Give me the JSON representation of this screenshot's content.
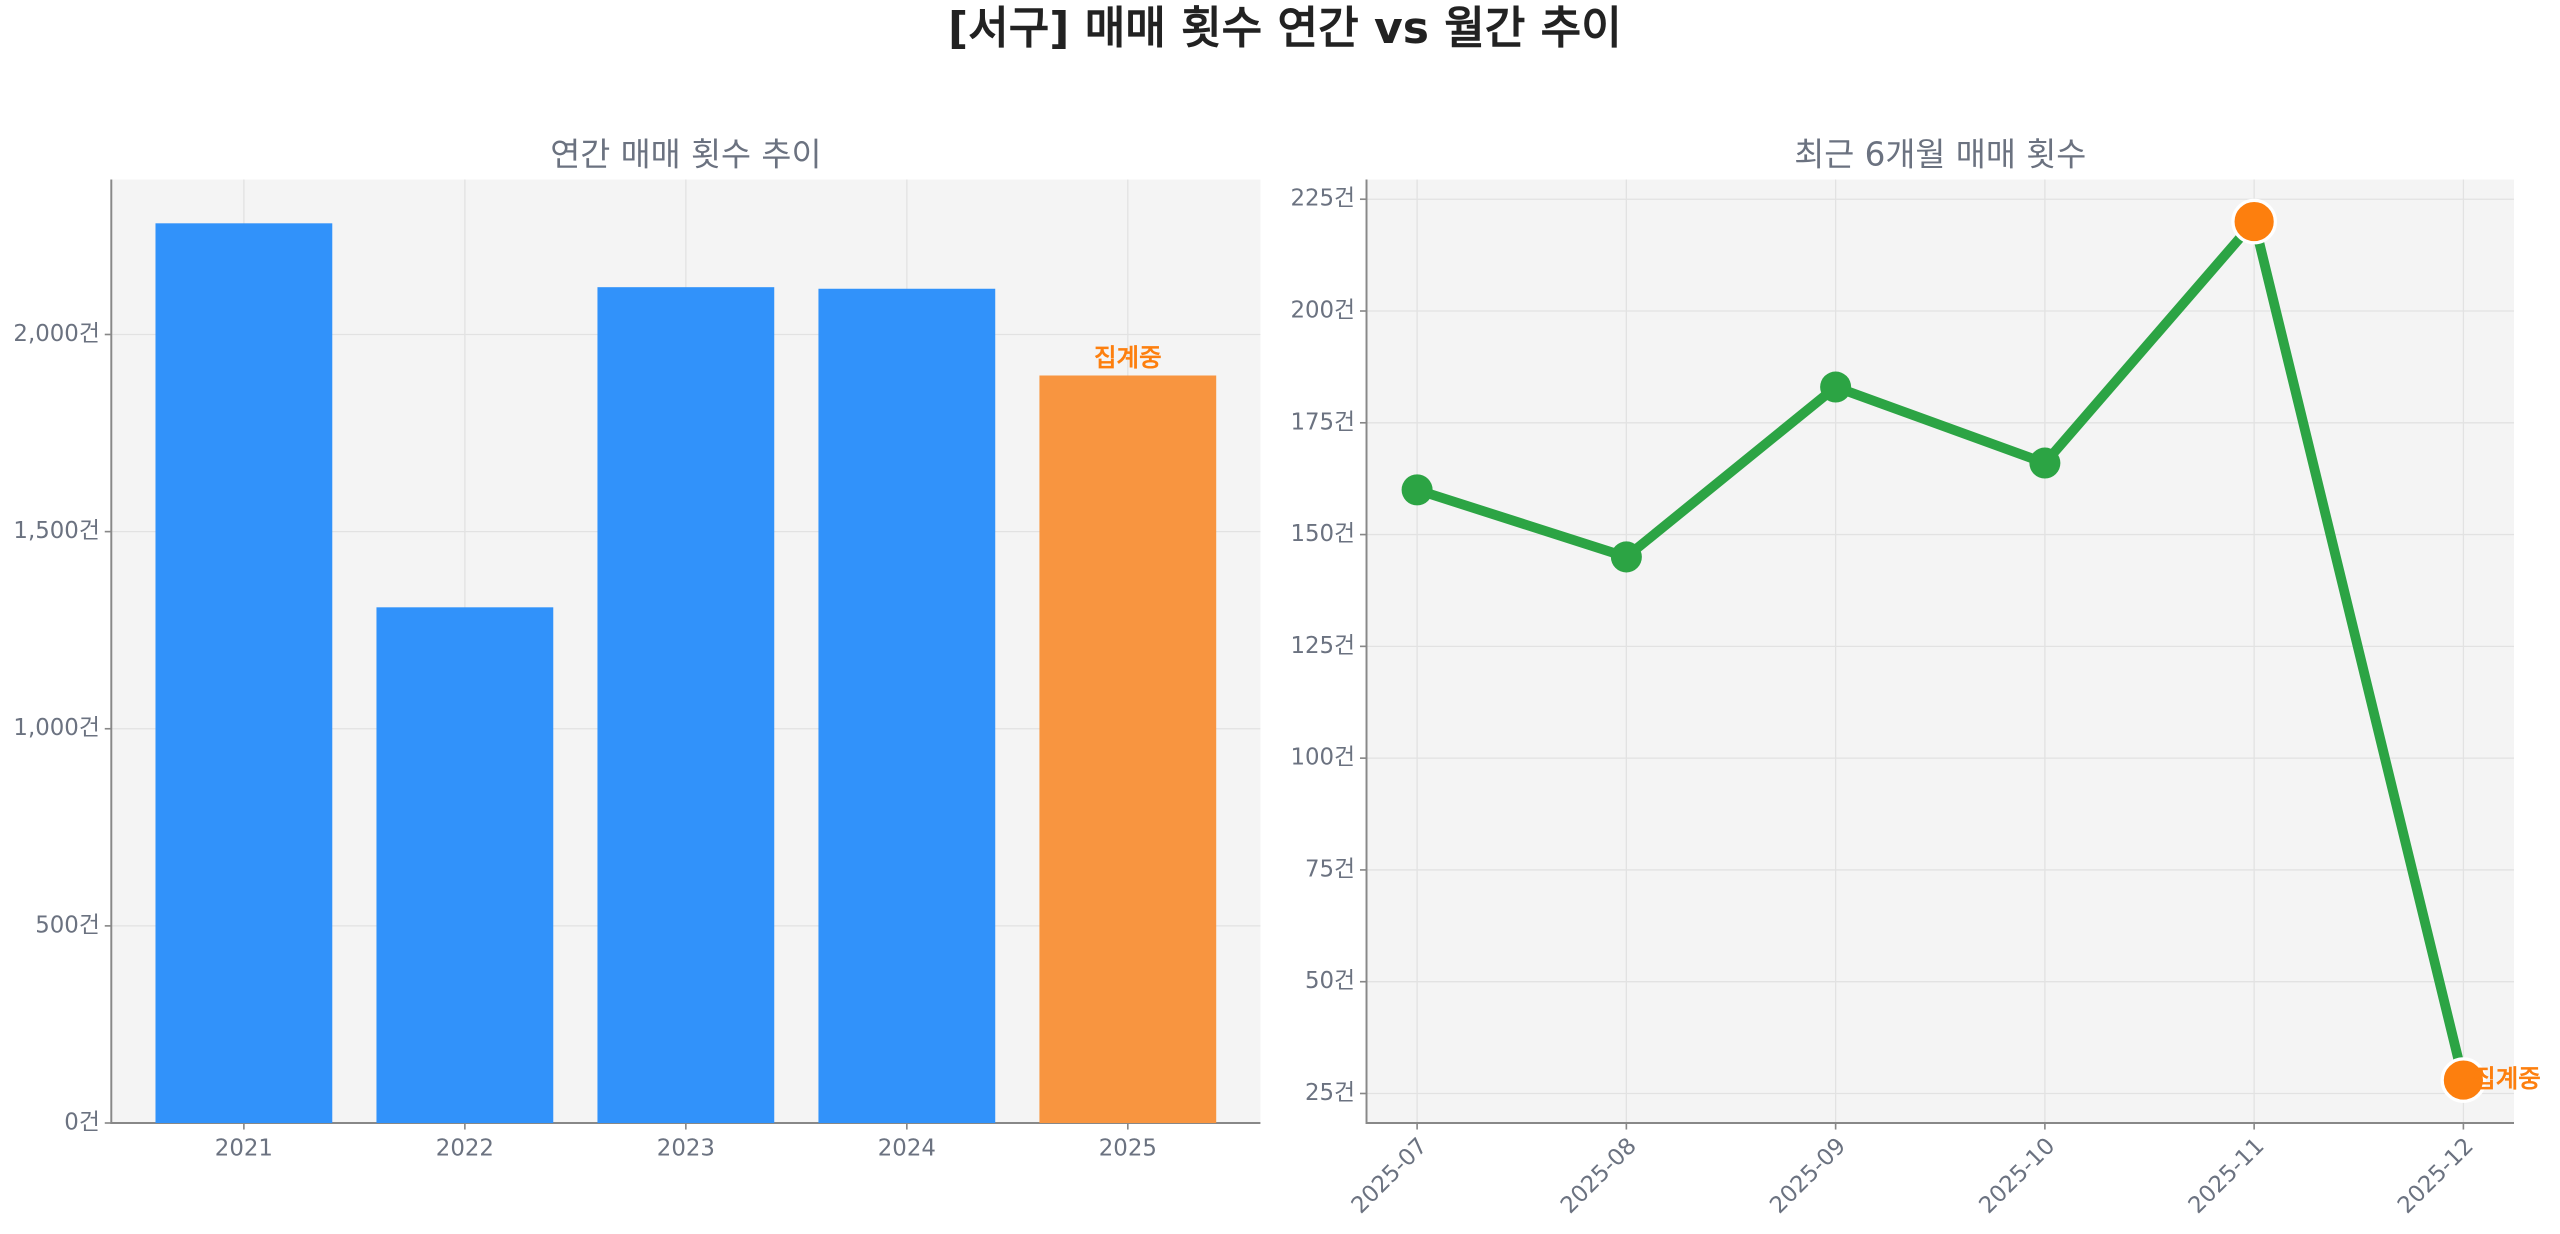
{
  "title": "[서구] 매매 횟수 연간 vs 월간 추이",
  "chart_data": [
    {
      "type": "bar",
      "title": "연간 매매 횟수 추이",
      "categories": [
        "2021",
        "2022",
        "2023",
        "2024",
        "2025"
      ],
      "values": [
        2282,
        1308,
        2120,
        2116,
        1896
      ],
      "colors": [
        "#3192fa",
        "#3192fa",
        "#3192fa",
        "#3192fa",
        "#f89540"
      ],
      "annotations": [
        {
          "x": "2025",
          "text": "집계중",
          "color": "#fd7f0e"
        }
      ],
      "ylim": [
        0,
        2393
      ],
      "yticks": [
        {
          "value": 0,
          "label": "0건"
        },
        {
          "value": 500,
          "label": "500건"
        },
        {
          "value": 1000,
          "label": "1,000건"
        },
        {
          "value": 1500,
          "label": "1,500건"
        },
        {
          "value": 2000,
          "label": "2,000건"
        }
      ],
      "grid": true
    },
    {
      "type": "line",
      "title": "최근 6개월 매매 횟수",
      "categories": [
        "2025-07",
        "2025-08",
        "2025-09",
        "2025-10",
        "2025-11",
        "2025-12"
      ],
      "values": [
        160,
        145,
        183,
        166,
        220,
        28
      ],
      "color": "#2ca444",
      "point_colors": [
        "#2ca444",
        "#2ca444",
        "#2ca444",
        "#2ca444",
        "#fd7f0e",
        "#fd7f0e"
      ],
      "annotations": [
        {
          "x": "2025-12",
          "text": "집계중",
          "color": "#fd7f0e"
        }
      ],
      "ylim": [
        18.4,
        229.4
      ],
      "yticks": [
        {
          "value": 25,
          "label": "25건"
        },
        {
          "value": 50,
          "label": "50건"
        },
        {
          "value": 75,
          "label": "75건"
        },
        {
          "value": 100,
          "label": "100건"
        },
        {
          "value": 125,
          "label": "125건"
        },
        {
          "value": 150,
          "label": "150건"
        },
        {
          "value": 175,
          "label": "175건"
        },
        {
          "value": 200,
          "label": "200건"
        },
        {
          "value": 225,
          "label": "225건"
        }
      ],
      "grid": true
    }
  ]
}
